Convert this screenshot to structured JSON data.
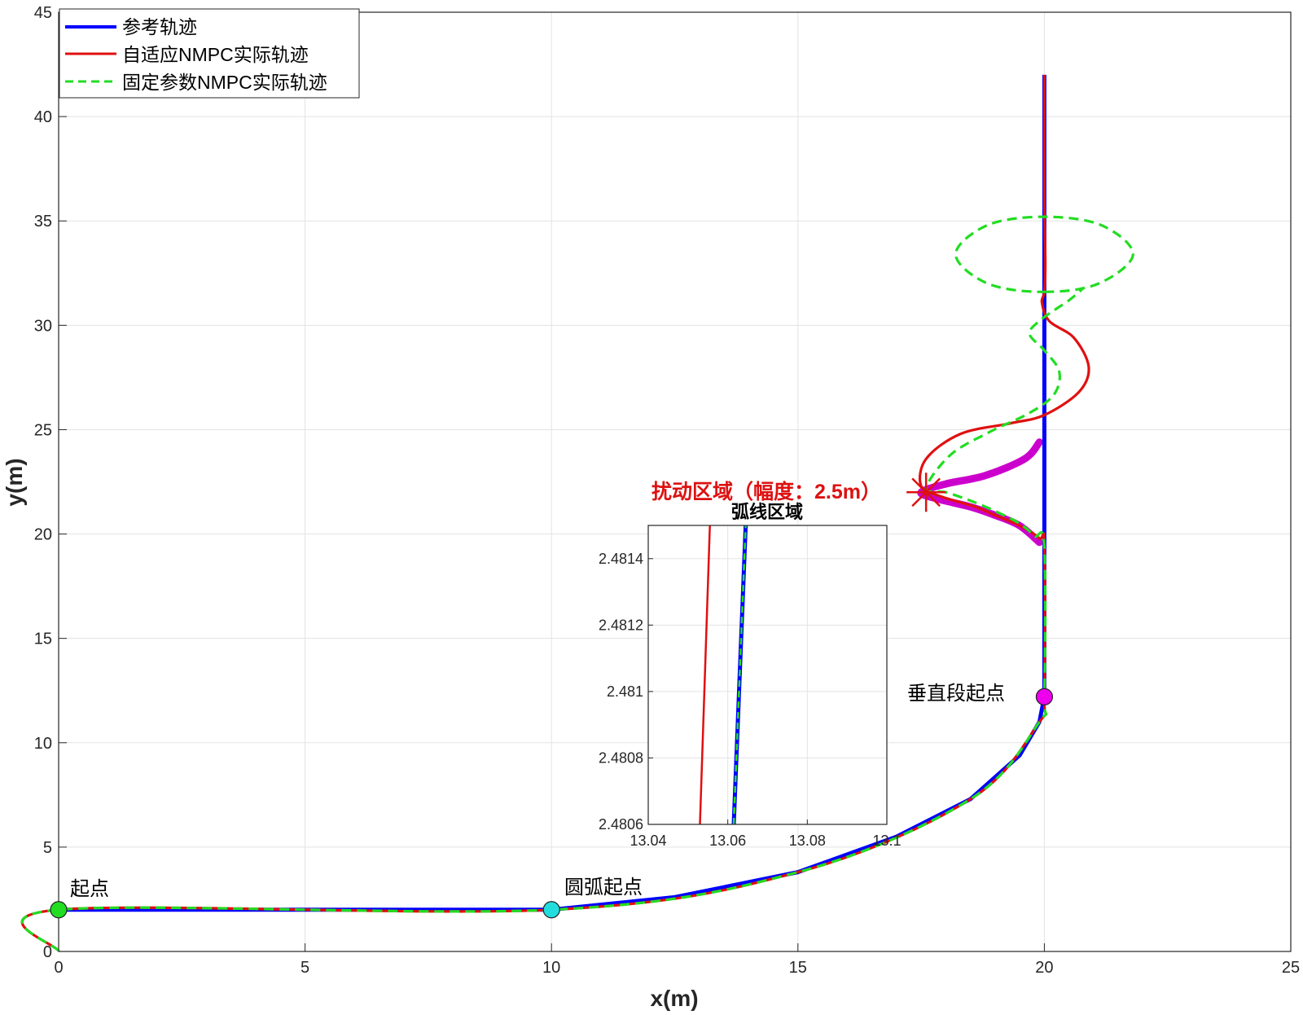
{
  "colors": {
    "reference": "#0000ff",
    "adaptive": "#e01010",
    "fixed": "#22dd22",
    "disturbance": "#cc00cc",
    "disturbance_text": "#dd1111",
    "start_marker": "#22dd22",
    "arc_marker": "#22dddd",
    "vertical_marker": "#ee00ee"
  },
  "chart_data": [
    {
      "type": "line",
      "title": "",
      "xlabel": "x(m)",
      "ylabel": "y(m)",
      "xlim": [
        0,
        25
      ],
      "ylim": [
        0,
        45
      ],
      "xticks": [
        "0",
        "5",
        "10",
        "15",
        "20",
        "25"
      ],
      "yticks": [
        "0",
        "5",
        "10",
        "15",
        "20",
        "25",
        "30",
        "35",
        "40",
        "45"
      ],
      "grid": true,
      "legend_position": "top-left",
      "legend": [
        "参考轨迹",
        "自适应NMPC实际轨迹",
        "固定参数NMPC实际轨迹"
      ],
      "series": [
        {
          "name": "参考轨迹",
          "style": "solid",
          "x": [
            0,
            10,
            12.5,
            15,
            17,
            18.5,
            19.5,
            19.9,
            20,
            20,
            20,
            20
          ],
          "y": [
            2,
            2,
            2.6,
            3.8,
            5.5,
            7.3,
            9.4,
            11,
            12.2,
            19.4,
            24.6,
            42
          ]
        },
        {
          "name": "自适应NMPC实际轨迹",
          "style": "solid",
          "x": [
            0,
            0,
            10,
            15,
            18.5,
            19.9,
            20,
            20,
            19.9,
            19.5,
            19,
            18.6,
            17.9,
            17.5,
            17.6,
            18.3,
            19.3,
            20,
            20.7,
            20.9,
            20.6,
            20.1,
            19.95,
            20,
            20.02,
            20,
            20
          ],
          "y": [
            0,
            2,
            2,
            3.8,
            7.3,
            11,
            12.2,
            19.4,
            19.8,
            20.4,
            20.9,
            21.3,
            21.8,
            22.3,
            23.6,
            24.8,
            25.3,
            25.7,
            26.8,
            28,
            29.4,
            30.2,
            31.1,
            31.6,
            33,
            36,
            42
          ]
        },
        {
          "name": "固定参数NMPC实际轨迹",
          "style": "dashed",
          "x": [
            0,
            0,
            10,
            15,
            18.5,
            19.9,
            20,
            20,
            19.8,
            19.5,
            19,
            18.5,
            18,
            17.6,
            18.1,
            18.9,
            19.7,
            20.2,
            20.3,
            20,
            19.7,
            19.95,
            20.5,
            20.8
          ],
          "y": [
            0,
            2,
            2,
            3.8,
            7.3,
            11,
            12.2,
            19.4,
            19.9,
            20.5,
            21.1,
            21.6,
            22,
            22.2,
            23.8,
            24.9,
            25.8,
            26.7,
            27.8,
            28.8,
            29.6,
            30.3,
            31.2,
            31.8
          ]
        },
        {
          "name": "",
          "style": "dashed-loop",
          "x": [
            20,
            21.1,
            21.8,
            21.15,
            20,
            18.85,
            18.2,
            18.85,
            20
          ],
          "y": [
            31.6,
            32,
            33.4,
            34.8,
            35.2,
            34.8,
            33.4,
            32,
            31.6
          ]
        },
        {
          "name": "",
          "style": "thick",
          "x": [
            19.9,
            19.5,
            19,
            18.5,
            17.8,
            17.5,
            18,
            18.8,
            19.6,
            19.9
          ],
          "y": [
            19.6,
            20.4,
            20.9,
            21.3,
            21.7,
            22,
            22.4,
            22.8,
            23.6,
            24.4
          ]
        }
      ],
      "markers": [
        {
          "label": "起点",
          "x": 0,
          "y": 2
        },
        {
          "label": "圆弧起点",
          "x": 10,
          "y": 2
        },
        {
          "label": "垂直段起点",
          "x": 20,
          "y": 12.2
        }
      ],
      "disturbance": {
        "label": "扰动区域（幅度：2.5m）",
        "x": 17.6,
        "y": 22
      }
    },
    {
      "type": "line",
      "title": "弧线区域",
      "xlim": [
        13.04,
        13.1
      ],
      "ylim": [
        2.4806,
        2.4815
      ],
      "xticks": [
        "13.04",
        "13.06",
        "13.08",
        "13.1"
      ],
      "yticks": [
        "2.4806",
        "2.4808",
        "2.481",
        "2.4812",
        "2.4814"
      ],
      "grid": true,
      "series": [
        {
          "name": "自适应NMPC实际轨迹",
          "x": [
            13.053,
            13.0555
          ],
          "y": [
            2.4806,
            2.4815
          ]
        },
        {
          "name": "参考轨迹",
          "x": [
            13.0615,
            13.0645
          ],
          "y": [
            2.4806,
            2.4815
          ]
        },
        {
          "name": "固定参数NMPC实际轨迹",
          "x": [
            13.0615,
            13.0645
          ],
          "y": [
            2.4806,
            2.4815
          ]
        }
      ]
    }
  ]
}
